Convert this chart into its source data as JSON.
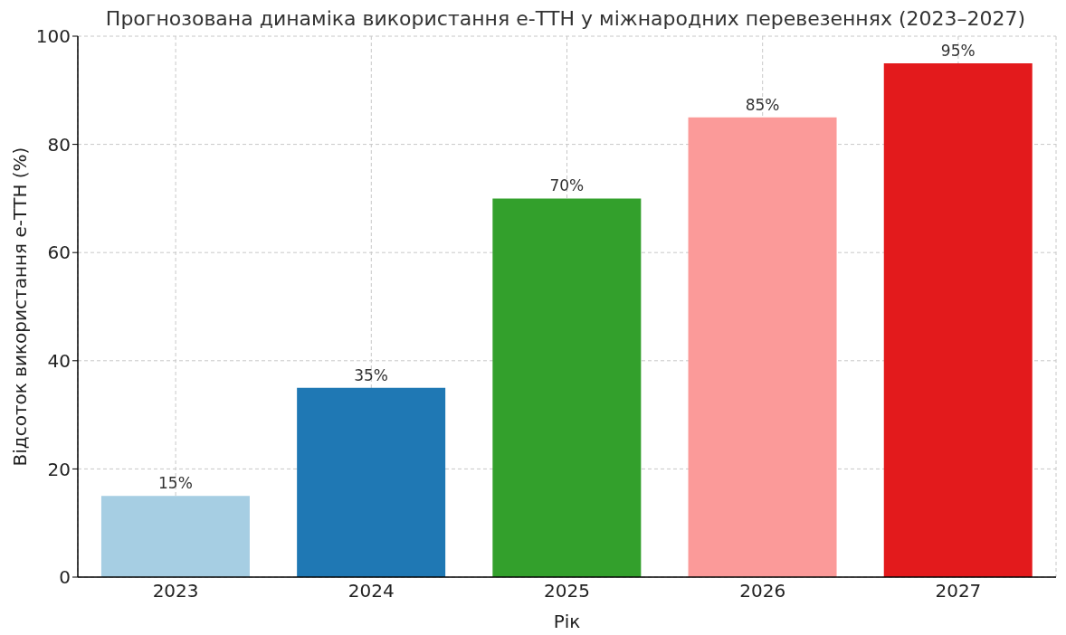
{
  "chart_data": {
    "type": "bar",
    "title": "Прогнозована динаміка використання е-ТТН у міжнародних перевезеннях (2023–2027)",
    "xlabel": "Рік",
    "ylabel": "Відсоток використання е-ТТН (%)",
    "categories": [
      "2023",
      "2024",
      "2025",
      "2026",
      "2027"
    ],
    "values": [
      15,
      35,
      70,
      85,
      95
    ],
    "colors": [
      "#a6cee3",
      "#1f78b4",
      "#33a02c",
      "#fb9a99",
      "#e31a1c"
    ],
    "value_labels": [
      "15%",
      "35%",
      "70%",
      "85%",
      "95%"
    ],
    "ylim": [
      0,
      100
    ],
    "yticks": [
      0,
      20,
      40,
      60,
      80,
      100
    ],
    "grid": true
  }
}
